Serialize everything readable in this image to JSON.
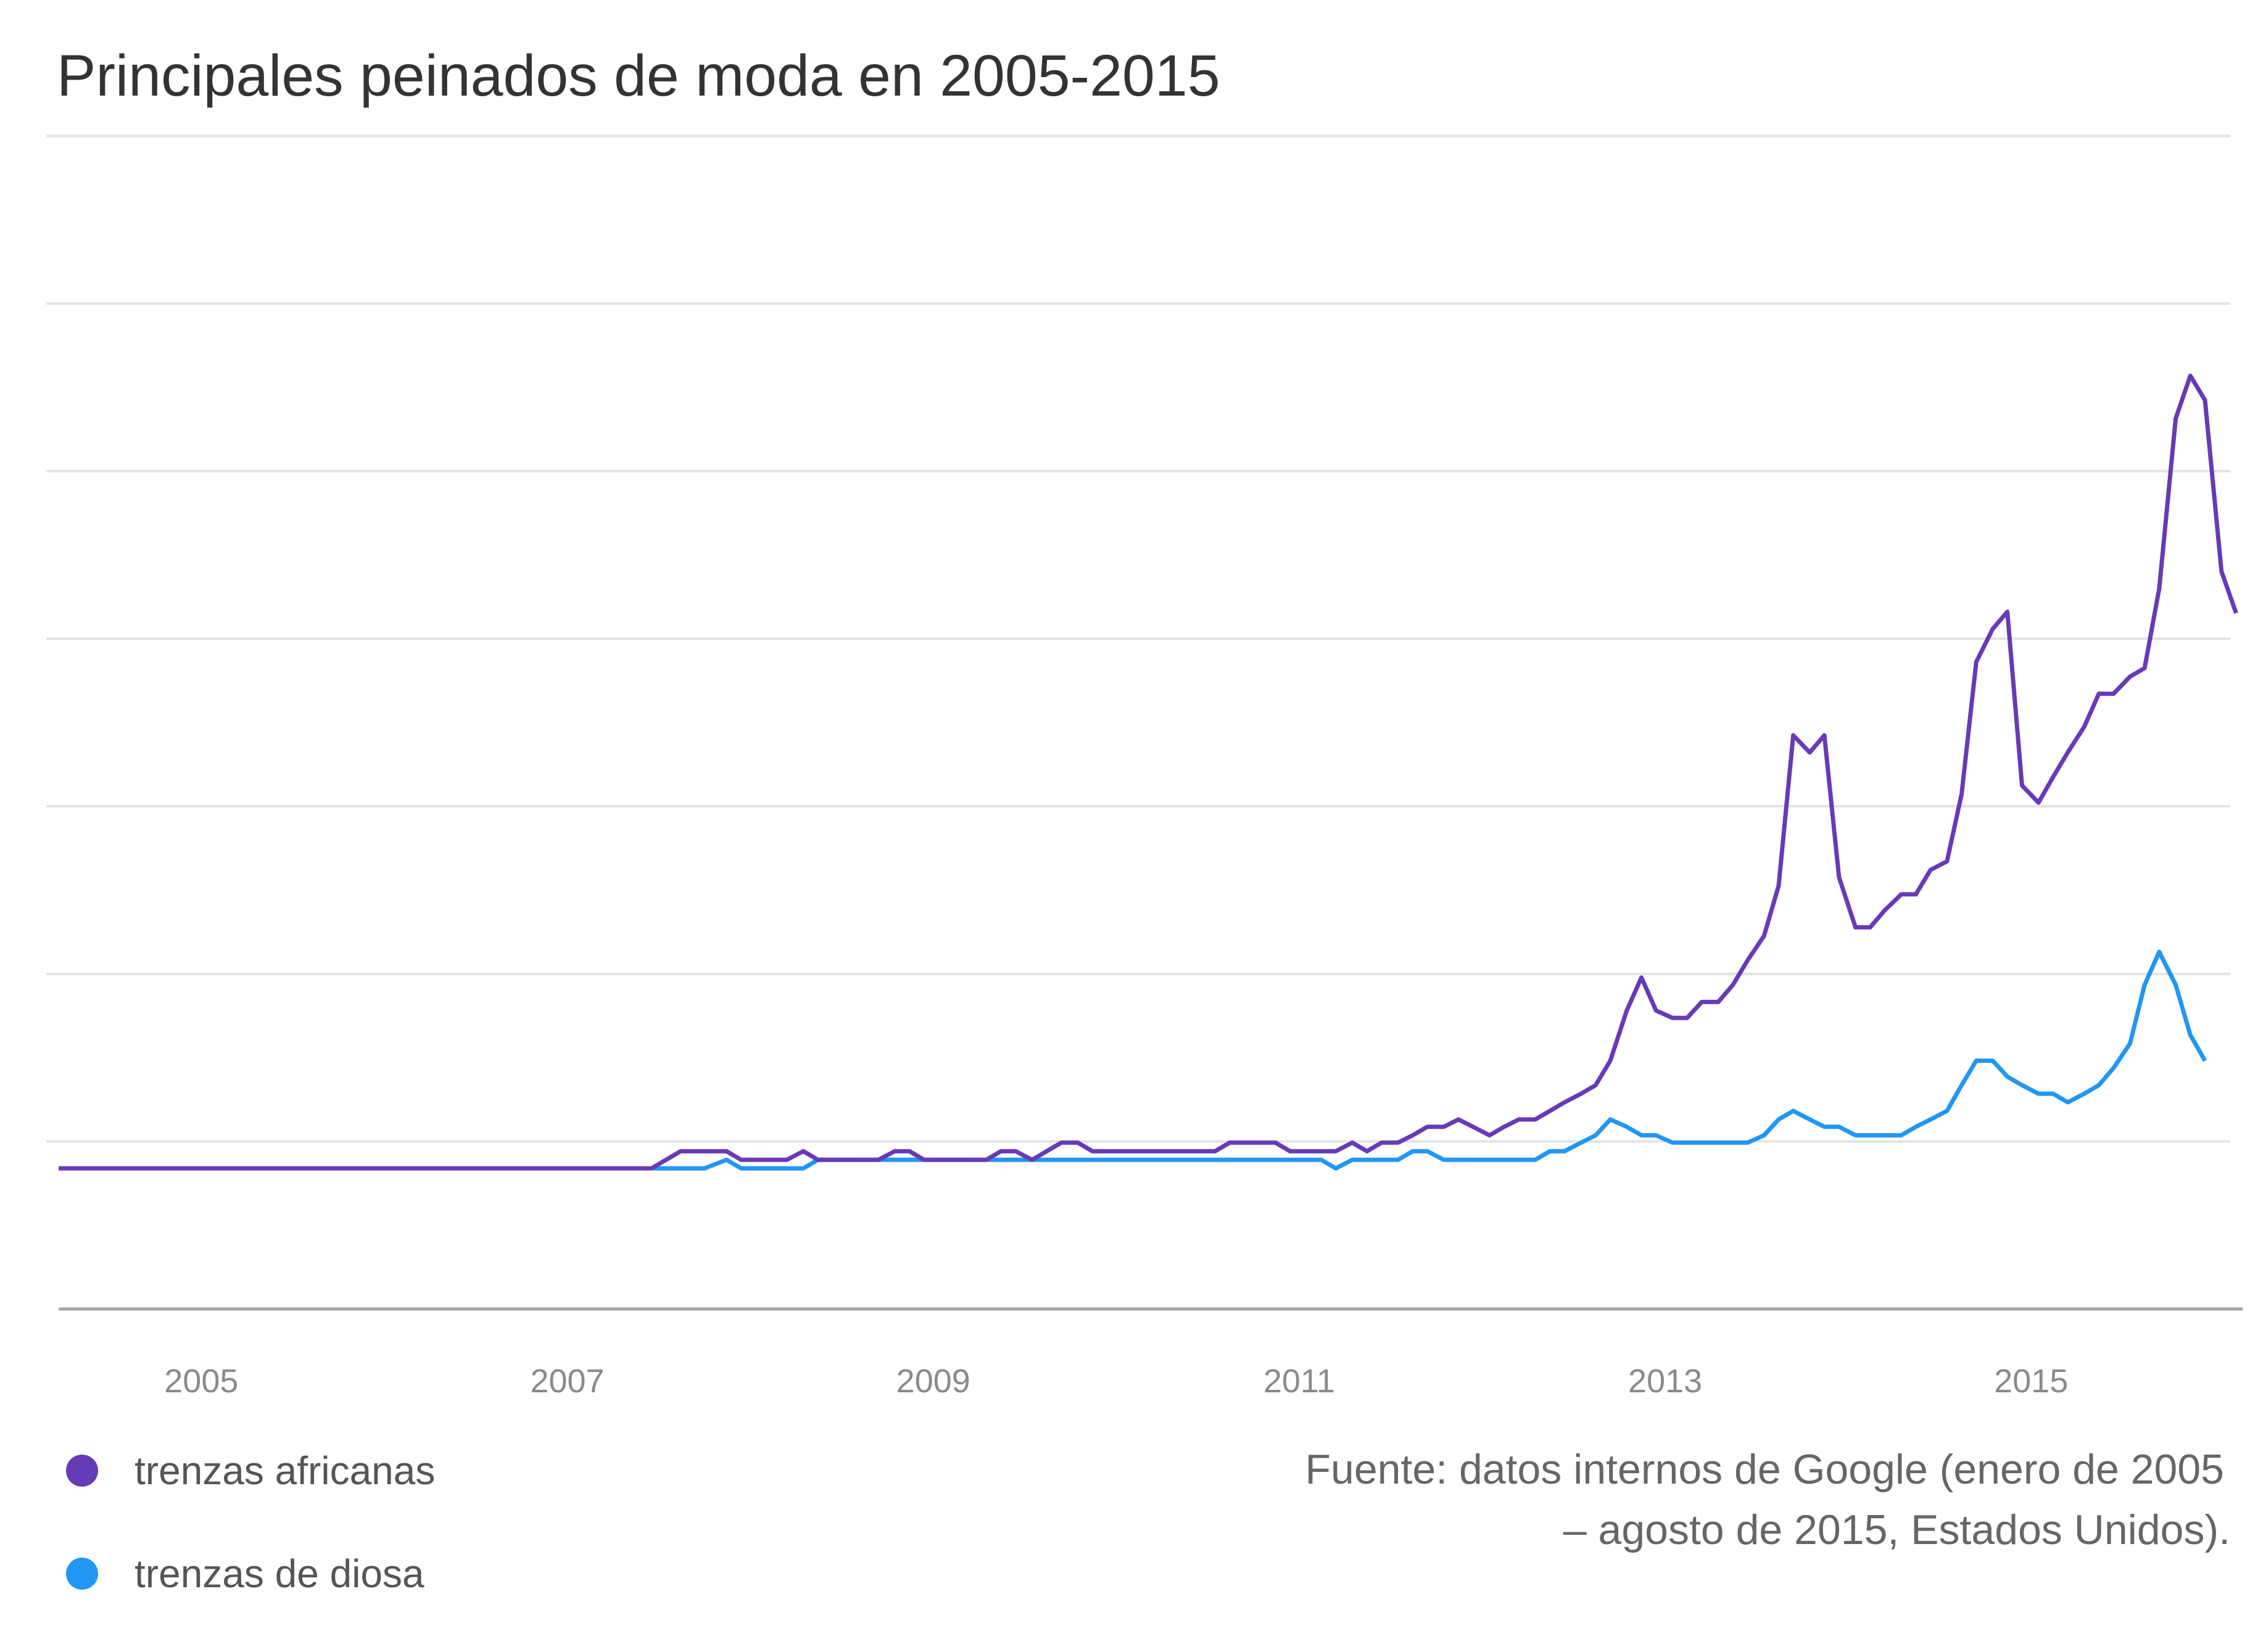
{
  "title": "Principales peinados de moda en 2005-2015",
  "source_lines": [
    "Fuente: datos internos de Google (enero de 2005",
    "– agosto de 2015, Estados Unidos)."
  ],
  "chart_data": {
    "type": "line",
    "title": "Principales peinados de moda en 2005-2015",
    "xlabel": "",
    "ylabel": "",
    "x_ticks": [
      "2005",
      "2007",
      "2009",
      "2011",
      "2013",
      "2015"
    ],
    "xlim": [
      2004.22,
      2015.97
    ],
    "ylim": [
      0,
      105
    ],
    "y_gridlines": [
      13.7,
      27.4,
      41.1,
      54.8,
      68.5,
      82.2,
      95.9
    ],
    "grid": true,
    "legend_position": "bottom-left",
    "series": [
      {
        "name": "trenzas africanas",
        "color": "#673AB7",
        "points": [
          [
            2004.22,
            11.5
          ],
          [
            2005.0,
            11.5
          ],
          [
            2006.0,
            11.5
          ],
          [
            2007.0,
            11.5
          ],
          [
            2007.46,
            11.5
          ],
          [
            2007.62,
            12.9
          ],
          [
            2007.75,
            12.9
          ],
          [
            2007.87,
            12.9
          ],
          [
            2007.95,
            12.2
          ],
          [
            2008.04,
            12.2
          ],
          [
            2008.12,
            12.2
          ],
          [
            2008.2,
            12.2
          ],
          [
            2008.29,
            12.9
          ],
          [
            2008.37,
            12.2
          ],
          [
            2008.54,
            12.2
          ],
          [
            2008.7,
            12.2
          ],
          [
            2008.79,
            12.9
          ],
          [
            2008.87,
            12.9
          ],
          [
            2008.95,
            12.2
          ],
          [
            2009.04,
            12.2
          ],
          [
            2009.12,
            12.2
          ],
          [
            2009.2,
            12.2
          ],
          [
            2009.29,
            12.2
          ],
          [
            2009.37,
            12.9
          ],
          [
            2009.45,
            12.9
          ],
          [
            2009.54,
            12.2
          ],
          [
            2009.62,
            12.9
          ],
          [
            2009.7,
            13.6
          ],
          [
            2009.79,
            13.6
          ],
          [
            2009.87,
            12.9
          ],
          [
            2009.95,
            12.9
          ],
          [
            2010.12,
            12.9
          ],
          [
            2010.29,
            12.9
          ],
          [
            2010.45,
            12.9
          ],
          [
            2010.54,
            12.9
          ],
          [
            2010.62,
            13.6
          ],
          [
            2010.7,
            13.6
          ],
          [
            2010.79,
            13.6
          ],
          [
            2010.87,
            13.6
          ],
          [
            2010.95,
            12.9
          ],
          [
            2011.04,
            12.9
          ],
          [
            2011.12,
            12.9
          ],
          [
            2011.2,
            12.9
          ],
          [
            2011.29,
            13.6
          ],
          [
            2011.37,
            12.9
          ],
          [
            2011.45,
            13.6
          ],
          [
            2011.54,
            13.6
          ],
          [
            2011.62,
            14.2
          ],
          [
            2011.7,
            14.9
          ],
          [
            2011.79,
            14.9
          ],
          [
            2011.87,
            15.5
          ],
          [
            2011.95,
            14.9
          ],
          [
            2012.04,
            14.2
          ],
          [
            2012.12,
            14.9
          ],
          [
            2012.2,
            15.5
          ],
          [
            2012.29,
            15.5
          ],
          [
            2012.37,
            16.2
          ],
          [
            2012.45,
            16.9
          ],
          [
            2012.54,
            17.6
          ],
          [
            2012.62,
            18.3
          ],
          [
            2012.7,
            20.3
          ],
          [
            2012.79,
            24.4
          ],
          [
            2012.87,
            27.1
          ],
          [
            2012.95,
            24.4
          ],
          [
            2013.04,
            23.8
          ],
          [
            2013.12,
            23.8
          ],
          [
            2013.2,
            25.1
          ],
          [
            2013.29,
            25.1
          ],
          [
            2013.37,
            26.5
          ],
          [
            2013.45,
            28.5
          ],
          [
            2013.54,
            30.5
          ],
          [
            2013.62,
            34.6
          ],
          [
            2013.7,
            46.9
          ],
          [
            2013.79,
            45.5
          ],
          [
            2013.87,
            46.9
          ],
          [
            2013.95,
            35.3
          ],
          [
            2014.04,
            31.2
          ],
          [
            2014.12,
            31.2
          ],
          [
            2014.2,
            32.6
          ],
          [
            2014.29,
            33.9
          ],
          [
            2014.37,
            33.9
          ],
          [
            2014.45,
            35.9
          ],
          [
            2014.54,
            36.6
          ],
          [
            2014.62,
            42.1
          ],
          [
            2014.7,
            52.9
          ],
          [
            2014.79,
            55.6
          ],
          [
            2014.87,
            57.0
          ],
          [
            2014.95,
            42.8
          ],
          [
            2015.04,
            41.4
          ],
          [
            2015.12,
            43.5
          ],
          [
            2015.2,
            45.5
          ],
          [
            2015.29,
            47.6
          ],
          [
            2015.37,
            50.3
          ],
          [
            2015.45,
            50.3
          ],
          [
            2015.54,
            51.7
          ],
          [
            2015.62,
            52.4
          ],
          [
            2015.7,
            58.9
          ],
          [
            2015.79,
            72.8
          ],
          [
            2015.87,
            76.3
          ],
          [
            2015.95,
            74.3
          ],
          [
            2016.04,
            60.3
          ],
          [
            2016.12,
            56.9
          ]
        ]
      },
      {
        "name": "trenzas de diosa",
        "color": "#2196F3",
        "points": [
          [
            2004.22,
            11.5
          ],
          [
            2005.0,
            11.5
          ],
          [
            2006.0,
            11.5
          ],
          [
            2007.0,
            11.5
          ],
          [
            2007.46,
            11.5
          ],
          [
            2007.62,
            11.5
          ],
          [
            2007.75,
            11.5
          ],
          [
            2007.87,
            12.2
          ],
          [
            2007.95,
            11.5
          ],
          [
            2008.04,
            11.5
          ],
          [
            2008.12,
            11.5
          ],
          [
            2008.2,
            11.5
          ],
          [
            2008.29,
            11.5
          ],
          [
            2008.37,
            12.2
          ],
          [
            2008.54,
            12.2
          ],
          [
            2008.7,
            12.2
          ],
          [
            2009.0,
            12.2
          ],
          [
            2009.5,
            12.2
          ],
          [
            2010.0,
            12.2
          ],
          [
            2010.5,
            12.2
          ],
          [
            2010.95,
            12.2
          ],
          [
            2011.04,
            12.2
          ],
          [
            2011.12,
            12.2
          ],
          [
            2011.2,
            11.5
          ],
          [
            2011.29,
            12.2
          ],
          [
            2011.45,
            12.2
          ],
          [
            2011.54,
            12.2
          ],
          [
            2011.62,
            12.9
          ],
          [
            2011.7,
            12.9
          ],
          [
            2011.79,
            12.2
          ],
          [
            2011.95,
            12.2
          ],
          [
            2012.12,
            12.2
          ],
          [
            2012.29,
            12.2
          ],
          [
            2012.37,
            12.9
          ],
          [
            2012.45,
            12.9
          ],
          [
            2012.54,
            13.6
          ],
          [
            2012.62,
            14.2
          ],
          [
            2012.7,
            15.5
          ],
          [
            2012.79,
            14.9
          ],
          [
            2012.87,
            14.2
          ],
          [
            2012.95,
            14.2
          ],
          [
            2013.04,
            13.6
          ],
          [
            2013.12,
            13.6
          ],
          [
            2013.29,
            13.6
          ],
          [
            2013.45,
            13.6
          ],
          [
            2013.54,
            14.2
          ],
          [
            2013.62,
            15.5
          ],
          [
            2013.7,
            16.2
          ],
          [
            2013.79,
            15.5
          ],
          [
            2013.87,
            14.9
          ],
          [
            2013.95,
            14.9
          ],
          [
            2014.04,
            14.2
          ],
          [
            2014.12,
            14.2
          ],
          [
            2014.29,
            14.2
          ],
          [
            2014.37,
            14.9
          ],
          [
            2014.45,
            15.5
          ],
          [
            2014.54,
            16.2
          ],
          [
            2014.62,
            18.3
          ],
          [
            2014.7,
            20.3
          ],
          [
            2014.79,
            20.3
          ],
          [
            2014.87,
            19.0
          ],
          [
            2014.95,
            18.3
          ],
          [
            2015.04,
            17.6
          ],
          [
            2015.12,
            17.6
          ],
          [
            2015.2,
            16.9
          ],
          [
            2015.29,
            17.6
          ],
          [
            2015.37,
            18.3
          ],
          [
            2015.45,
            19.7
          ],
          [
            2015.54,
            21.7
          ],
          [
            2015.62,
            26.5
          ],
          [
            2015.7,
            29.2
          ],
          [
            2015.79,
            26.5
          ],
          [
            2015.87,
            22.4
          ],
          [
            2015.95,
            20.3
          ]
        ]
      }
    ]
  }
}
